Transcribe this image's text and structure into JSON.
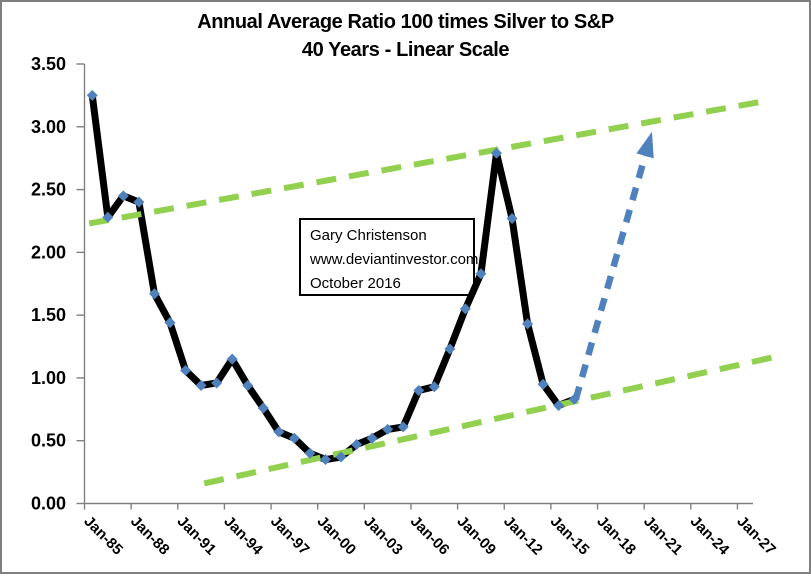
{
  "title": {
    "line1": "Annual Average Ratio 100 times Silver to S&P",
    "line2": "40 Years - Linear Scale"
  },
  "annotation": {
    "lines": [
      "Gary Christenson",
      "www.deviantinvestor.com",
      "October 2016"
    ]
  },
  "colors": {
    "series_line": "#000000",
    "marker": "#4F81BD",
    "trendline": "#92D050",
    "projection_arrow": "#4F81BD",
    "axis": "#808080",
    "text": "#000000",
    "frame": "#7F7F7F"
  },
  "chart_data": {
    "type": "line",
    "title": "Annual Average Ratio 100 times Silver to S&P",
    "subtitle": "40 Years - Linear Scale",
    "x_years": [
      1985,
      1986,
      1987,
      1988,
      1989,
      1990,
      1991,
      1992,
      1993,
      1994,
      1995,
      1996,
      1997,
      1998,
      1999,
      2000,
      2001,
      2002,
      2003,
      2004,
      2005,
      2006,
      2007,
      2008,
      2009,
      2010,
      2011,
      2012,
      2013,
      2014,
      2015,
      2016
    ],
    "series": [
      {
        "name": "Annual average ratio of 100 times Silver to S&P",
        "values": [
          3.25,
          2.28,
          2.45,
          2.4,
          1.67,
          1.44,
          1.06,
          0.94,
          0.96,
          1.15,
          0.94,
          0.76,
          0.57,
          0.52,
          0.4,
          0.35,
          0.37,
          0.47,
          0.52,
          0.59,
          0.61,
          0.9,
          0.93,
          1.23,
          1.55,
          1.83,
          2.79,
          2.27,
          1.43,
          0.95,
          0.78,
          0.83
        ]
      }
    ],
    "ylim": [
      0,
      3.5
    ],
    "ytick_step": 0.5,
    "ytick_labels": [
      "0.00",
      "0.50",
      "1.00",
      "1.50",
      "2.00",
      "2.50",
      "3.00",
      "3.50"
    ],
    "x_axis": {
      "first_year": 1985,
      "last_year": 2027,
      "label_step_years": 3,
      "tick_labels": [
        "Jan-85",
        "Jan-88",
        "Jan-91",
        "Jan-94",
        "Jan-97",
        "Jan-00",
        "Jan-03",
        "Jan-06",
        "Jan-09",
        "Jan-12",
        "Jan-15",
        "Jan-18",
        "Jan-21",
        "Jan-24",
        "Jan-27"
      ]
    },
    "trendlines": [
      {
        "name": "upper-channel",
        "style": "dashed",
        "start": {
          "year": 1984.8,
          "value": 2.23
        },
        "end": {
          "year": 2028.5,
          "value": 3.21
        }
      },
      {
        "name": "lower-channel",
        "style": "dashed",
        "start": {
          "year": 1992.2,
          "value": 0.16
        },
        "end": {
          "year": 2029.0,
          "value": 1.17
        }
      }
    ],
    "projection_arrow": {
      "style": "dashed",
      "start": {
        "year": 2016.1,
        "value": 0.83
      },
      "end": {
        "year": 2021.0,
        "value": 2.96
      }
    },
    "legend": "none",
    "grid": false
  }
}
